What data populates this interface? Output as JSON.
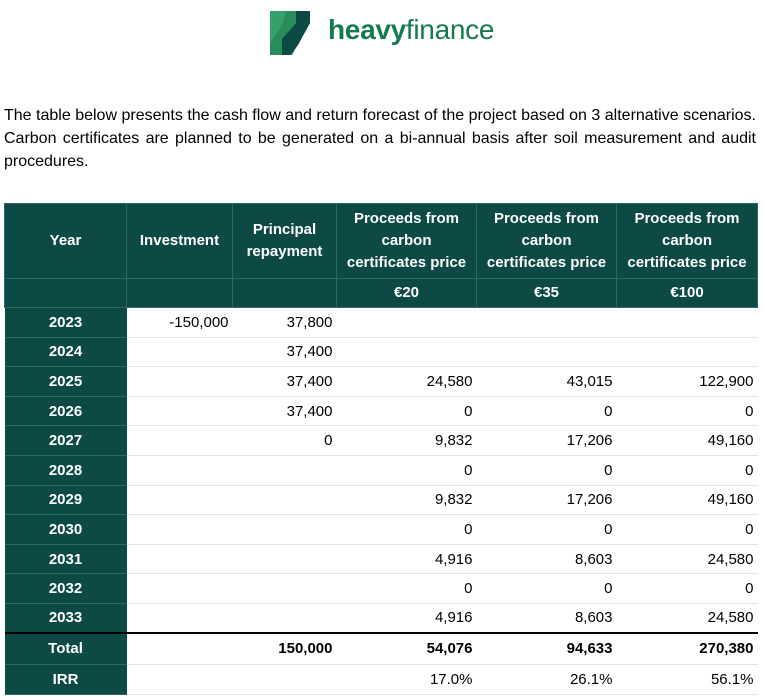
{
  "brand": {
    "name_bold": "heavy",
    "name_light": "finance",
    "logo_color": "#167a4f",
    "icon": "heavyfinance-logo-icon"
  },
  "intro_text": "The table below presents the cash flow and return forecast of the project based on 3 alternative scenarios. Carbon certificates are planned to be generated on a bi-annual basis after soil measurement and audit procedures.",
  "table": {
    "header_color": "#0d4a45",
    "columns": [
      "Year",
      "Investment",
      "Principal repayment",
      "Proceeds from carbon certificates price",
      "Proceeds from carbon certificates price",
      "Proceeds from carbon certificates price"
    ],
    "prices": [
      "€20",
      "€35",
      "€100"
    ],
    "rows": [
      {
        "year": "2023",
        "investment": "-150,000",
        "principal": "37,800",
        "p20": "",
        "p35": "",
        "p100": ""
      },
      {
        "year": "2024",
        "investment": "",
        "principal": "37,400",
        "p20": "",
        "p35": "",
        "p100": ""
      },
      {
        "year": "2025",
        "investment": "",
        "principal": "37,400",
        "p20": "24,580",
        "p35": "43,015",
        "p100": "122,900"
      },
      {
        "year": "2026",
        "investment": "",
        "principal": "37,400",
        "p20": "0",
        "p35": "0",
        "p100": "0"
      },
      {
        "year": "2027",
        "investment": "",
        "principal": "0",
        "p20": "9,832",
        "p35": "17,206",
        "p100": "49,160"
      },
      {
        "year": "2028",
        "investment": "",
        "principal": "",
        "p20": "0",
        "p35": "0",
        "p100": "0"
      },
      {
        "year": "2029",
        "investment": "",
        "principal": "",
        "p20": "9,832",
        "p35": "17,206",
        "p100": "49,160"
      },
      {
        "year": "2030",
        "investment": "",
        "principal": "",
        "p20": "0",
        "p35": "0",
        "p100": "0"
      },
      {
        "year": "2031",
        "investment": "",
        "principal": "",
        "p20": "4,916",
        "p35": "8,603",
        "p100": "24,580"
      },
      {
        "year": "2032",
        "investment": "",
        "principal": "",
        "p20": "0",
        "p35": "0",
        "p100": "0"
      },
      {
        "year": "2033",
        "investment": "",
        "principal": "",
        "p20": "4,916",
        "p35": "8,603",
        "p100": "24,580"
      }
    ],
    "total": {
      "label": "Total",
      "investment": "",
      "principal": "150,000",
      "p20": "54,076",
      "p35": "94,633",
      "p100": "270,380"
    },
    "irr": {
      "label": "IRR",
      "investment": "",
      "principal": "",
      "p20": "17.0%",
      "p35": "26.1%",
      "p100": "56.1%"
    }
  }
}
